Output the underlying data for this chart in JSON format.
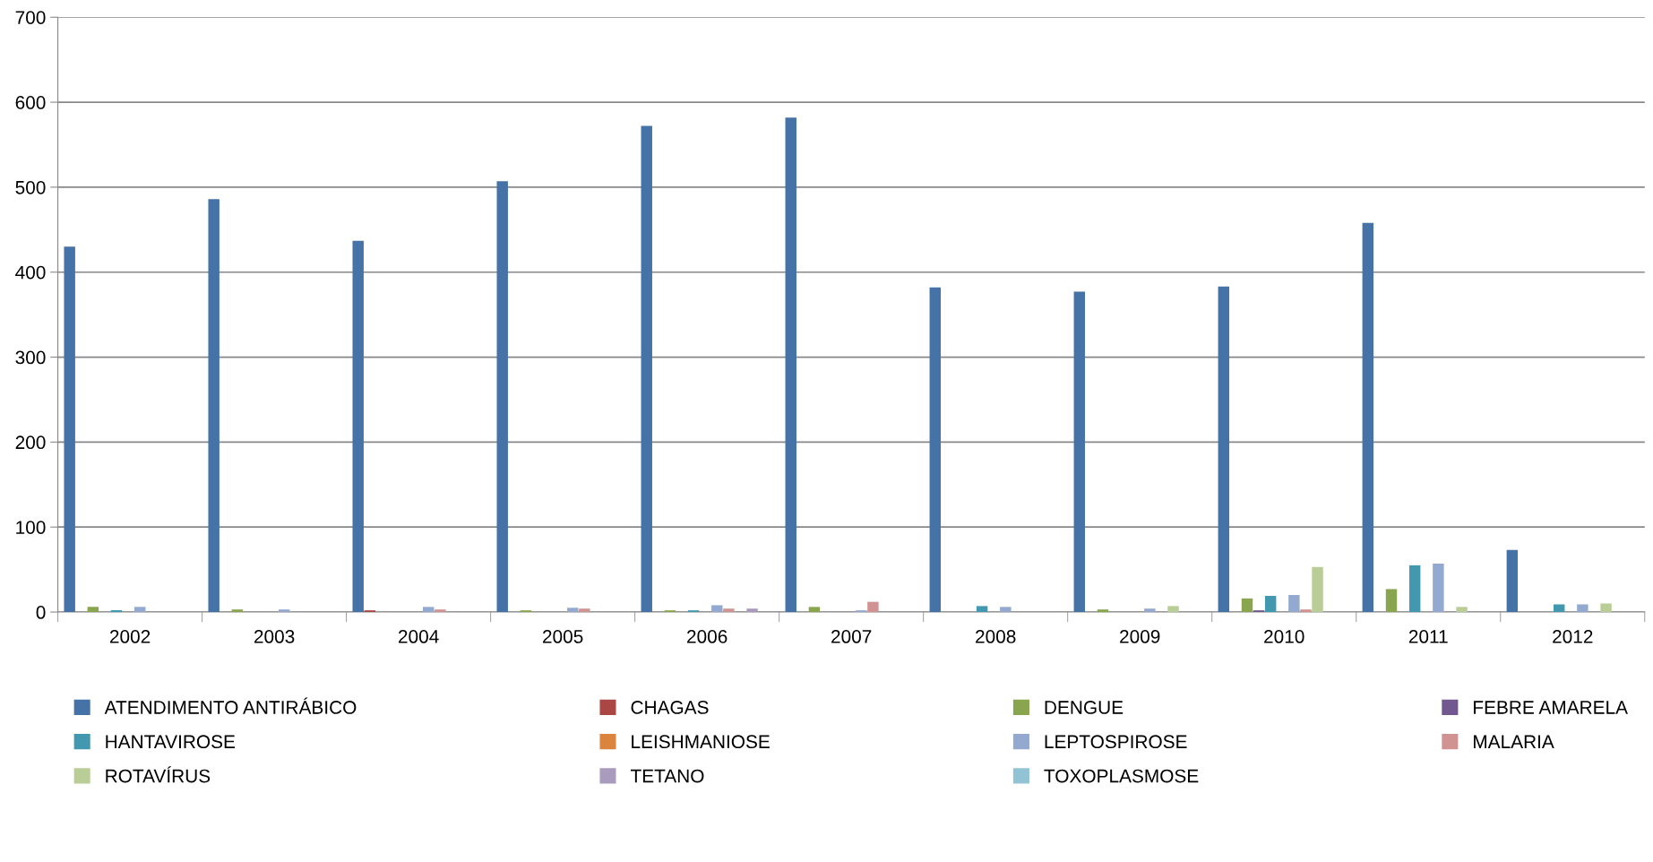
{
  "chart_data": {
    "type": "bar",
    "categories": [
      "2002",
      "2003",
      "2004",
      "2005",
      "2006",
      "2007",
      "2008",
      "2009",
      "2010",
      "2011",
      "2012"
    ],
    "ylim": [
      0,
      700
    ],
    "yticks": [
      0,
      100,
      200,
      300,
      400,
      500,
      600,
      700
    ],
    "grid": "y",
    "legend": "bottom",
    "series": [
      {
        "name": "ATENDIMENTO ANTIRÁBICO",
        "color": "#4572a7",
        "values": [
          430,
          486,
          437,
          507,
          572,
          582,
          382,
          377,
          383,
          458,
          73
        ]
      },
      {
        "name": "CHAGAS",
        "color": "#aa4643",
        "values": [
          0,
          0,
          2,
          0,
          0,
          0,
          0,
          0,
          0,
          0,
          0
        ]
      },
      {
        "name": "DENGUE",
        "color": "#89a54e",
        "values": [
          6,
          3,
          0,
          2,
          2,
          6,
          0,
          3,
          16,
          27,
          0
        ]
      },
      {
        "name": "FEBRE AMARELA",
        "color": "#71588f",
        "values": [
          0,
          0,
          0,
          0,
          0,
          0,
          0,
          0,
          2,
          0,
          0
        ]
      },
      {
        "name": "HANTAVIROSE",
        "color": "#4198af",
        "values": [
          2,
          0,
          0,
          0,
          2,
          0,
          7,
          0,
          19,
          55,
          9
        ]
      },
      {
        "name": "LEISHMANIOSE",
        "color": "#db843d",
        "values": [
          0,
          0,
          0,
          0,
          0,
          0,
          0,
          0,
          0,
          0,
          0
        ]
      },
      {
        "name": "LEPTOSPIROSE",
        "color": "#93a9cf",
        "values": [
          6,
          3,
          6,
          5,
          8,
          2,
          6,
          4,
          20,
          57,
          9
        ]
      },
      {
        "name": "MALARIA",
        "color": "#d19392",
        "values": [
          0,
          0,
          3,
          4,
          4,
          12,
          0,
          0,
          3,
          0,
          0
        ]
      },
      {
        "name": "ROTAVÍRUS",
        "color": "#b9cd96",
        "values": [
          0,
          0,
          0,
          0,
          0,
          0,
          0,
          7,
          53,
          6,
          10
        ]
      },
      {
        "name": "TETANO",
        "color": "#a99bbd",
        "values": [
          0,
          0,
          0,
          0,
          4,
          0,
          0,
          0,
          0,
          0,
          0
        ]
      },
      {
        "name": "TOXOPLASMOSE",
        "color": "#92c3d5",
        "values": [
          0,
          0,
          0,
          0,
          0,
          0,
          0,
          0,
          0,
          0,
          0
        ]
      }
    ]
  }
}
